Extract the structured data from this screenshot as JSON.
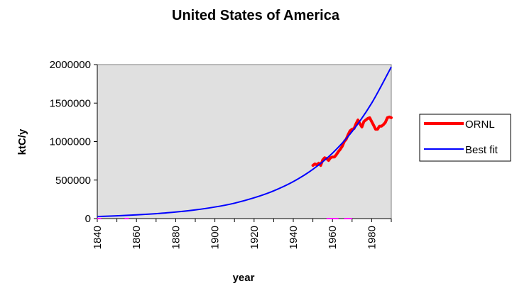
{
  "chart_data": {
    "type": "line",
    "title": "United States of America",
    "xlabel": "year",
    "ylabel": "ktC/y",
    "xlim": [
      1840,
      1990
    ],
    "ylim": [
      0,
      2000000
    ],
    "x_ticks": [
      "1840",
      "1860",
      "1880",
      "1900",
      "1920",
      "1940",
      "1960",
      "1980"
    ],
    "y_ticks": [
      "0",
      "500000",
      "1000000",
      "1500000",
      "2000000"
    ],
    "plot_background": "#e0e0e0",
    "grid": false,
    "legend_position": "right",
    "series": [
      {
        "name": "ORNL",
        "color": "#ff0000",
        "x": [
          1950,
          1951,
          1952,
          1953,
          1954,
          1955,
          1956,
          1957,
          1958,
          1959,
          1960,
          1961,
          1962,
          1963,
          1964,
          1965,
          1966,
          1967,
          1968,
          1969,
          1970,
          1971,
          1972,
          1973,
          1974,
          1975,
          1976,
          1977,
          1978,
          1979,
          1980,
          1981,
          1982,
          1983,
          1984,
          1985,
          1986,
          1987,
          1988,
          1989,
          1990
        ],
        "y": [
          690000,
          710000,
          700000,
          720000,
          690000,
          760000,
          790000,
          780000,
          755000,
          790000,
          800000,
          800000,
          830000,
          870000,
          900000,
          940000,
          1000000,
          1030000,
          1090000,
          1140000,
          1160000,
          1170000,
          1230000,
          1280000,
          1230000,
          1190000,
          1260000,
          1280000,
          1300000,
          1310000,
          1260000,
          1210000,
          1160000,
          1160000,
          1200000,
          1200000,
          1220000,
          1250000,
          1310000,
          1320000,
          1310000
        ]
      },
      {
        "name": "Best fit",
        "color": "#0000ff",
        "x": [
          1840,
          1850,
          1860,
          1870,
          1880,
          1890,
          1900,
          1910,
          1920,
          1930,
          1940,
          1950,
          1960,
          1970,
          1980,
          1990
        ],
        "y": [
          27000,
          36000,
          48000,
          64000,
          85000,
          113000,
          150000,
          200000,
          270000,
          360000,
          480000,
          640000,
          850000,
          1130000,
          1500000,
          1970000
        ]
      },
      {
        "name": "",
        "color": "#ff00ff",
        "x": [
          1841,
          1855,
          1958,
          1960,
          1962,
          1967,
          1969
        ],
        "y": [
          0,
          0,
          0,
          0,
          0,
          0,
          0
        ]
      }
    ]
  }
}
